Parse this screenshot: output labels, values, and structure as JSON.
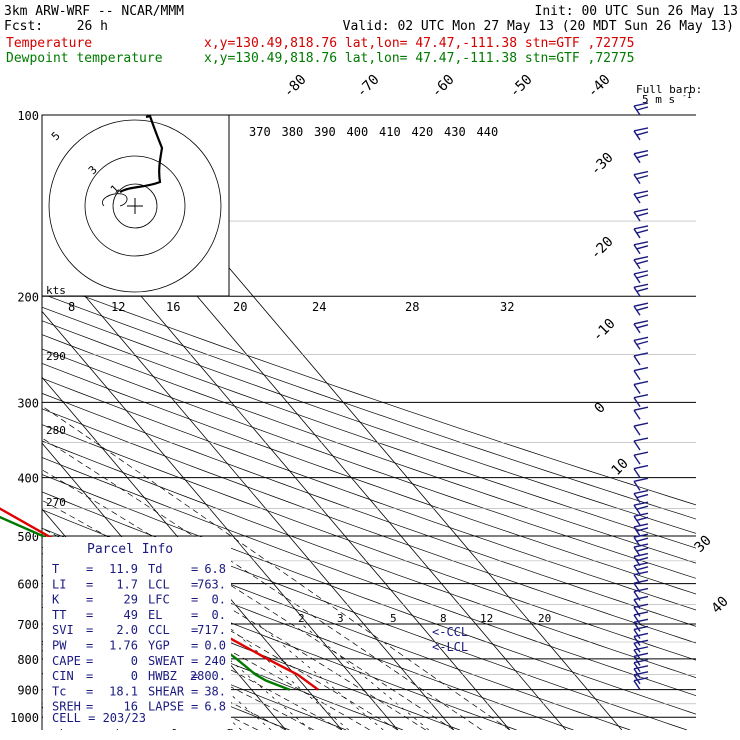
{
  "header": {
    "title": "3km ARW-WRF -- NCAR/MMM",
    "init": "Init: 00 UTC Sun 26 May 13",
    "fcst_label": "Fcst:",
    "fcst_value": "26 h",
    "valid": "Valid: 02 UTC Mon 27 May 13 (20 MDT Sun 26 May 13)",
    "temp_label": "Temperature",
    "dew_label": "Dewpoint temperature",
    "loc_line": "x,y=130.49,818.76    lat,lon= 47.47,-111.38   stn=GTF ,72775"
  },
  "barb_legend": {
    "line1": "Full barb:",
    "line2": "5 m s",
    "exp": "-1"
  },
  "chart_data": {
    "type": "line",
    "subtype": "skew-T log-p sounding",
    "y_axis": {
      "scale": "log",
      "reversed": true,
      "ylim": [
        1000,
        100
      ],
      "ticks": [
        100,
        200,
        300,
        400,
        500,
        600,
        700,
        800,
        900,
        1000
      ]
    },
    "isotherm_labels": [
      -80,
      -70,
      -60,
      -50,
      -40,
      -30,
      -20,
      -10,
      0,
      10,
      30,
      40
    ],
    "theta_labels": [
      370,
      380,
      390,
      400,
      410,
      420,
      430,
      440
    ],
    "hodograph_speed_labels": [
      8,
      12,
      16,
      20,
      24,
      28,
      32
    ],
    "kts_label": "kts",
    "hodograph_ring_labels": [
      5,
      3,
      1
    ],
    "dry_adiabat_labels": [
      290,
      280,
      270
    ],
    "mixing_ratio_labels": [
      2,
      3,
      5,
      8,
      12,
      20
    ],
    "lcl_marks": [
      "<-CCL",
      "<-LCL"
    ],
    "series": [
      {
        "name": "Temperature",
        "color": "#e00000",
        "points": [
          [
            900,
            11.9
          ],
          [
            850,
            10.5
          ],
          [
            800,
            7.5
          ],
          [
            700,
            1.5
          ],
          [
            600,
            -6
          ],
          [
            500,
            -13
          ],
          [
            450,
            -17.5
          ],
          [
            400,
            -23
          ],
          [
            350,
            -30
          ],
          [
            320,
            -35
          ],
          [
            300,
            -38
          ],
          [
            280,
            -42
          ],
          [
            260,
            -47
          ],
          [
            240,
            -49
          ],
          [
            220,
            -50
          ],
          [
            200,
            -49
          ],
          [
            170,
            -51
          ],
          [
            145,
            -54
          ],
          [
            130,
            -55
          ],
          [
            115,
            -57
          ],
          [
            100,
            -57
          ]
        ]
      },
      {
        "name": "Dewpoint temperature",
        "color": "#007a00",
        "points": [
          [
            900,
            6.8
          ],
          [
            870,
            4
          ],
          [
            850,
            3
          ],
          [
            800,
            2
          ],
          [
            700,
            -1
          ],
          [
            600,
            -7
          ],
          [
            500,
            -14
          ],
          [
            450,
            -21
          ],
          [
            400,
            -28
          ],
          [
            370,
            -35
          ],
          [
            340,
            -42
          ],
          [
            320,
            -45
          ],
          [
            300,
            -47
          ],
          [
            260,
            -55
          ],
          [
            220,
            -62
          ],
          [
            200,
            -65
          ],
          [
            170,
            -70
          ],
          [
            140,
            -74
          ],
          [
            120,
            -77
          ],
          [
            100,
            -79
          ]
        ]
      }
    ],
    "wind_barb_pressures": [
      100,
      110,
      120,
      130,
      140,
      150,
      160,
      170,
      180,
      190,
      200,
      215,
      230,
      245,
      260,
      275,
      290,
      305,
      320,
      340,
      360,
      380,
      400,
      420,
      440,
      460,
      480,
      500,
      520,
      540,
      560,
      580,
      600,
      620,
      640,
      660,
      680,
      700,
      720,
      740,
      760,
      780,
      800,
      820,
      840,
      860,
      880,
      900
    ]
  },
  "parcel_info": {
    "title": "Parcel Info",
    "rows": [
      {
        "l1": "T",
        "v1": "11.9",
        "l2": "Td",
        "v2": "6.8"
      },
      {
        "l1": "LI",
        "v1": "1.7",
        "l2": "LCL",
        "v2": "763."
      },
      {
        "l1": "K",
        "v1": "29",
        "l2": "LFC",
        "v2": "0."
      },
      {
        "l1": "TT",
        "v1": "49",
        "l2": "EL",
        "v2": "0."
      },
      {
        "l1": "SVI",
        "v1": "2.0",
        "l2": "CCL",
        "v2": "717."
      },
      {
        "l1": "PW",
        "v1": "1.76",
        "l2": "YGP",
        "v2": "0.0"
      },
      {
        "l1": "CAPE",
        "v1": "0",
        "l2": "SWEAT",
        "v2": "240"
      },
      {
        "l1": "CIN",
        "v1": "0",
        "l2": "HWBZ",
        "v2": "2800."
      },
      {
        "l1": "Tc",
        "v1": "18.1",
        "l2": "SHEAR",
        "v2": "38."
      },
      {
        "l1": "SREH",
        "v1": "16",
        "l2": "LAPSE",
        "v2": "6.8"
      }
    ],
    "cell": "CELL = 203/23"
  }
}
